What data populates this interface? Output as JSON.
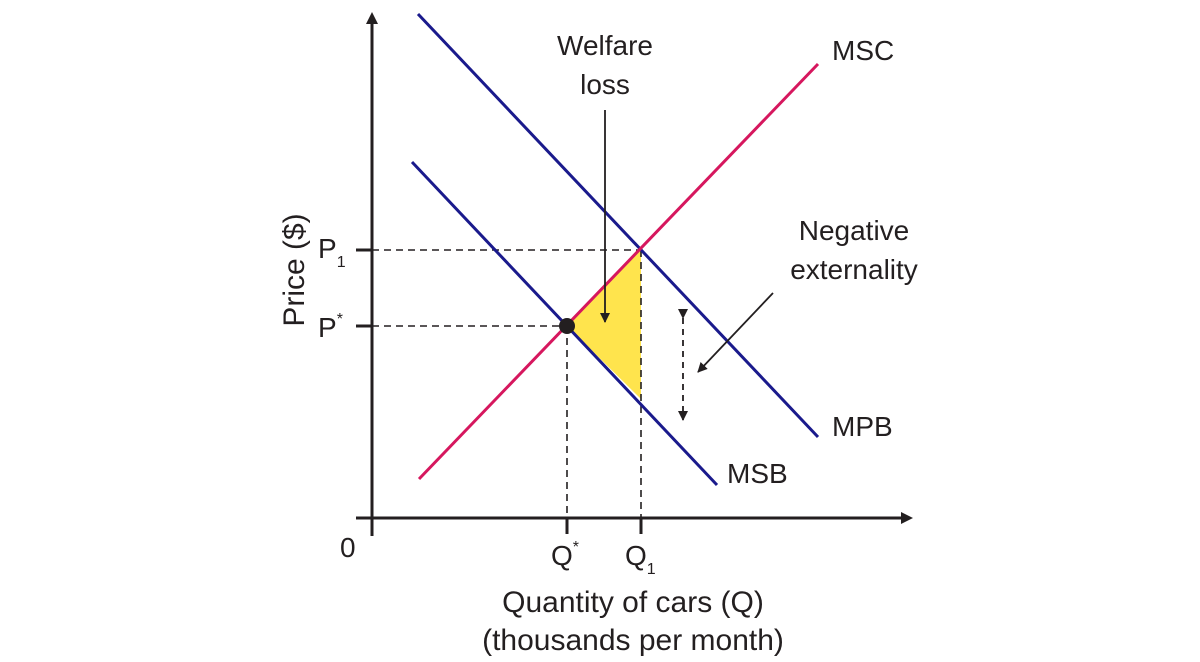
{
  "colors": {
    "axis": "#231f20",
    "demand": "#1a1a8c",
    "supply": "#d6175e",
    "welfare_fill": "#ffe44d",
    "guide": "#231f20"
  },
  "axes": {
    "y_label": "Price ($)",
    "x_label_line1": "Quantity of cars (Q)",
    "x_label_line2": "(thousands per month)",
    "origin": "0"
  },
  "ticks": {
    "p1_main": "P",
    "p1_sub": "1",
    "pstar_main": "P",
    "pstar_sup": "*",
    "qstar_main": "Q",
    "qstar_sup": "*",
    "q1_main": "Q",
    "q1_sub": "1"
  },
  "curves": {
    "msc": "MSC",
    "mpb": "MPB",
    "msb": "MSB"
  },
  "annotations": {
    "welfare_line1": "Welfare",
    "welfare_line2": "loss",
    "externality_line1": "Negative",
    "externality_line2": "externality"
  }
}
